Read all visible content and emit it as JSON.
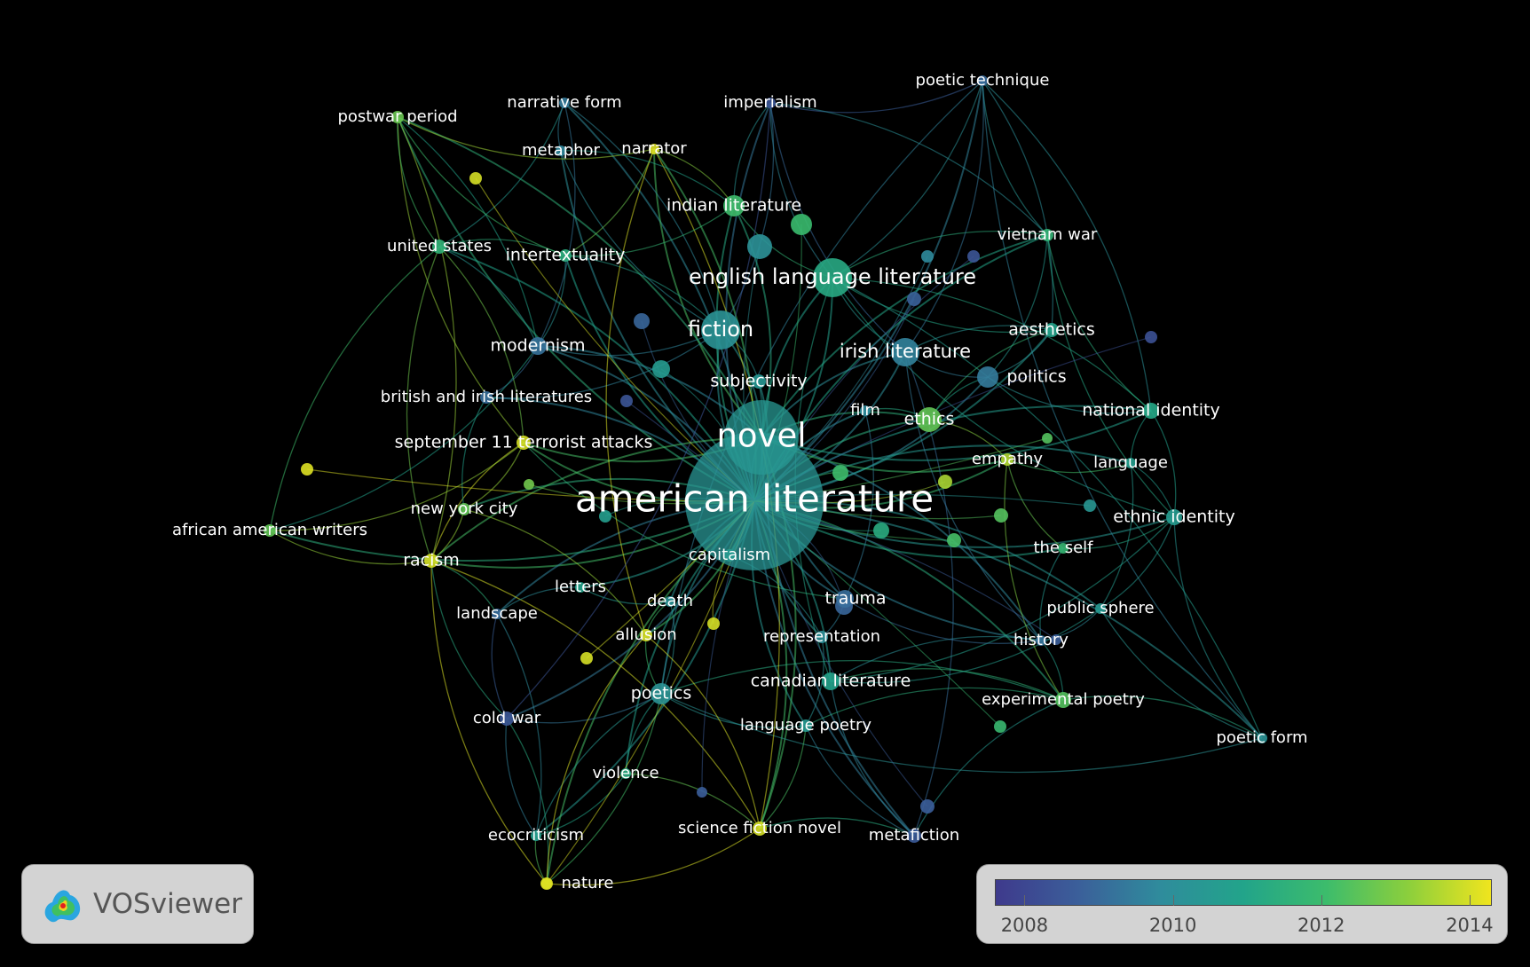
{
  "color_scale": {
    "min_year": 2007.6,
    "max_year": 2014.3,
    "stops": [
      "#3e3a8c",
      "#3b5f9a",
      "#2f8c9c",
      "#22a48a",
      "#3cbc6c",
      "#8ccf3c",
      "#f0e51e"
    ],
    "tick_labels": [
      "2008",
      "2010",
      "2012",
      "2014"
    ],
    "tick_years": [
      2008,
      2010,
      2012,
      2014
    ]
  },
  "logo": {
    "text": "VOSviewer",
    "icon": "vosviewer-logo-icon"
  },
  "nodes": [
    {
      "id": "american-literature",
      "label": "american literature",
      "weight": 10,
      "year": 2010.3
    },
    {
      "id": "novel",
      "label": "novel",
      "weight": 6,
      "year": 2010.4
    },
    {
      "id": "english-language-literature",
      "label": "english language literature",
      "weight": 3.2,
      "year": 2011.2
    },
    {
      "id": "fiction",
      "label": "fiction",
      "weight": 3.2,
      "year": 2010.2
    },
    {
      "id": "irish-literature",
      "label": "irish literature",
      "weight": 2.6,
      "year": 2009.6
    },
    {
      "id": "indian-literature",
      "label": "indian literature",
      "weight": 2.1,
      "year": 2012.1
    },
    {
      "id": "poetics",
      "label": "poetics",
      "weight": 2.1,
      "year": 2010.2
    },
    {
      "id": "canadian-literature",
      "label": "canadian literature",
      "weight": 1.8,
      "year": 2010.9
    },
    {
      "id": "modernism",
      "label": "modernism",
      "weight": 1.8,
      "year": 2009.2
    },
    {
      "id": "ethics",
      "label": "ethics",
      "weight": 1.6,
      "year": 2012.6
    },
    {
      "id": "subjectivity",
      "label": "subjectivity",
      "weight": 1.5,
      "year": 2010.4
    },
    {
      "id": "trauma",
      "label": "trauma",
      "weight": 1.5,
      "year": 2009.1
    },
    {
      "id": "national-identity",
      "label": "national identity",
      "weight": 1.5,
      "year": 2011.1
    },
    {
      "id": "ethnic-identity",
      "label": "ethnic identity",
      "weight": 1.5,
      "year": 2010.6
    },
    {
      "id": "september-11",
      "label": "september 11 terrorist attacks",
      "weight": 1.5,
      "year": 2014.0
    },
    {
      "id": "politics",
      "label": "politics",
      "weight": 1.4,
      "year": 2009.4
    },
    {
      "id": "intertextuality",
      "label": "intertextuality",
      "weight": 1.3,
      "year": 2011.4
    },
    {
      "id": "aesthetics",
      "label": "aesthetics",
      "weight": 1.3,
      "year": 2010.9
    },
    {
      "id": "racism",
      "label": "racism",
      "weight": 1.3,
      "year": 2014.0
    },
    {
      "id": "british-and-irish-literatures",
      "label": "british and irish literatures",
      "weight": 1.3,
      "year": 2009.1
    },
    {
      "id": "representation",
      "label": "representation",
      "weight": 1.3,
      "year": 2010.0
    },
    {
      "id": "capitalism",
      "label": "capitalism",
      "weight": 1.3,
      "year": 2010.5
    },
    {
      "id": "film",
      "label": "film",
      "weight": 1.2,
      "year": 2009.8
    },
    {
      "id": "empathy",
      "label": "empathy",
      "weight": 1.2,
      "year": 2013.6
    },
    {
      "id": "language",
      "label": "language",
      "weight": 1.2,
      "year": 2010.7
    },
    {
      "id": "the-self",
      "label": "the self",
      "weight": 1.2,
      "year": 2011.8
    },
    {
      "id": "public-sphere",
      "label": "public sphere",
      "weight": 1.2,
      "year": 2010.5
    },
    {
      "id": "history",
      "label": "history",
      "weight": 1.2,
      "year": 2009.2
    },
    {
      "id": "experimental-poetry",
      "label": "experimental poetry",
      "weight": 1.3,
      "year": 2012.4
    },
    {
      "id": "language-poetry",
      "label": "language poetry",
      "weight": 1.2,
      "year": 2010.5
    },
    {
      "id": "allusion",
      "label": "allusion",
      "weight": 1.2,
      "year": 2014.0
    },
    {
      "id": "death",
      "label": "death",
      "weight": 1.1,
      "year": 2010.2
    },
    {
      "id": "letters",
      "label": "letters",
      "weight": 1.1,
      "year": 2010.9
    },
    {
      "id": "landscape",
      "label": "landscape",
      "weight": 1.1,
      "year": 2009.0
    },
    {
      "id": "cold-war",
      "label": "cold war",
      "weight": 1.2,
      "year": 2008.5
    },
    {
      "id": "violence",
      "label": "violence",
      "weight": 1.1,
      "year": 2011.3
    },
    {
      "id": "ecocriticism",
      "label": "ecocriticism",
      "weight": 1.1,
      "year": 2010.7
    },
    {
      "id": "nature",
      "label": "nature",
      "weight": 1.2,
      "year": 2014.1
    },
    {
      "id": "science-fiction-novel",
      "label": "science fiction novel",
      "weight": 1.3,
      "year": 2014.0
    },
    {
      "id": "metafiction",
      "label": "metafiction",
      "weight": 1.2,
      "year": 2008.6
    },
    {
      "id": "poetic-form",
      "label": "poetic form",
      "weight": 1.1,
      "year": 2010.2
    },
    {
      "id": "poetic-technique",
      "label": "poetic technique",
      "weight": 1.1,
      "year": 2009.0
    },
    {
      "id": "imperialism",
      "label": "imperialism",
      "weight": 1.1,
      "year": 2008.4
    },
    {
      "id": "narrative-form",
      "label": "narrative form",
      "weight": 1.1,
      "year": 2009.4
    },
    {
      "id": "metaphor",
      "label": "metaphor",
      "weight": 1.1,
      "year": 2009.7
    },
    {
      "id": "narrator",
      "label": "narrator",
      "weight": 1.1,
      "year": 2014.1
    },
    {
      "id": "postwar-period",
      "label": "postwar period",
      "weight": 1.2,
      "year": 2012.7
    },
    {
      "id": "united-states",
      "label": "united states",
      "weight": 1.3,
      "year": 2011.6
    },
    {
      "id": "vietnam-war",
      "label": "vietnam war",
      "weight": 1.2,
      "year": 2011.7
    },
    {
      "id": "new-york-city",
      "label": "new york city",
      "weight": 1.2,
      "year": 2012.6
    },
    {
      "id": "african-american-writers",
      "label": "african american writers",
      "weight": 1.2,
      "year": 2012.6
    }
  ],
  "edges": [
    [
      "american-literature",
      "novel"
    ],
    [
      "american-literature",
      "english-language-literature"
    ],
    [
      "american-literature",
      "fiction"
    ],
    [
      "american-literature",
      "irish-literature"
    ],
    [
      "american-literature",
      "indian-literature"
    ],
    [
      "american-literature",
      "poetics"
    ],
    [
      "american-literature",
      "canadian-literature"
    ],
    [
      "american-literature",
      "modernism"
    ],
    [
      "american-literature",
      "ethics"
    ],
    [
      "american-literature",
      "trauma"
    ],
    [
      "american-literature",
      "national-identity"
    ],
    [
      "american-literature",
      "ethnic-identity"
    ],
    [
      "american-literature",
      "september-11"
    ],
    [
      "american-literature",
      "politics"
    ],
    [
      "american-literature",
      "racism"
    ],
    [
      "american-literature",
      "representation"
    ],
    [
      "american-literature",
      "capitalism"
    ],
    [
      "american-literature",
      "empathy"
    ],
    [
      "american-literature",
      "language"
    ],
    [
      "american-literature",
      "the-self"
    ],
    [
      "american-literature",
      "public-sphere"
    ],
    [
      "american-literature",
      "history"
    ],
    [
      "american-literature",
      "experimental-poetry"
    ],
    [
      "american-literature",
      "language-poetry"
    ],
    [
      "american-literature",
      "allusion"
    ],
    [
      "american-literature",
      "death"
    ],
    [
      "american-literature",
      "letters"
    ],
    [
      "american-literature",
      "landscape"
    ],
    [
      "american-literature",
      "cold-war"
    ],
    [
      "american-literature",
      "violence"
    ],
    [
      "american-literature",
      "ecocriticism"
    ],
    [
      "american-literature",
      "nature"
    ],
    [
      "american-literature",
      "science-fiction-novel"
    ],
    [
      "american-literature",
      "metafiction"
    ],
    [
      "american-literature",
      "poetic-form"
    ],
    [
      "american-literature",
      "poetic-technique"
    ],
    [
      "american-literature",
      "imperialism"
    ],
    [
      "american-literature",
      "narrative-form"
    ],
    [
      "american-literature",
      "metaphor"
    ],
    [
      "american-literature",
      "narrator"
    ],
    [
      "american-literature",
      "postwar-period"
    ],
    [
      "american-literature",
      "united-states"
    ],
    [
      "american-literature",
      "vietnam-war"
    ],
    [
      "american-literature",
      "new-york-city"
    ],
    [
      "american-literature",
      "african-american-writers"
    ],
    [
      "american-literature",
      "aesthetics"
    ],
    [
      "american-literature",
      "intertextuality"
    ],
    [
      "american-literature",
      "british-and-irish-literatures"
    ],
    [
      "american-literature",
      "film"
    ],
    [
      "american-literature",
      "subjectivity"
    ],
    [
      "novel",
      "english-language-literature"
    ],
    [
      "novel",
      "fiction"
    ],
    [
      "novel",
      "irish-literature"
    ],
    [
      "novel",
      "indian-literature"
    ],
    [
      "novel",
      "ethics"
    ],
    [
      "novel",
      "trauma"
    ],
    [
      "novel",
      "september-11"
    ],
    [
      "novel",
      "modernism"
    ],
    [
      "novel",
      "narrator"
    ],
    [
      "novel",
      "postwar-period"
    ],
    [
      "novel",
      "science-fiction-novel"
    ],
    [
      "novel",
      "metafiction"
    ],
    [
      "novel",
      "vietnam-war"
    ],
    [
      "novel",
      "national-identity"
    ],
    [
      "novel",
      "capitalism"
    ],
    [
      "novel",
      "racism"
    ],
    [
      "novel",
      "history"
    ],
    [
      "novel",
      "empathy"
    ],
    [
      "english-language-literature",
      "indian-literature"
    ],
    [
      "english-language-literature",
      "irish-literature"
    ],
    [
      "english-language-literature",
      "national-identity"
    ],
    [
      "english-language-literature",
      "poetic-technique"
    ],
    [
      "english-language-literature",
      "imperialism"
    ],
    [
      "english-language-literature",
      "aesthetics"
    ],
    [
      "english-language-literature",
      "vietnam-war"
    ],
    [
      "english-language-literature",
      "ethnic-identity"
    ],
    [
      "english-language-literature",
      "poetic-form"
    ],
    [
      "english-language-literature",
      "canadian-literature"
    ],
    [
      "fiction",
      "modernism"
    ],
    [
      "fiction",
      "narrative-form"
    ],
    [
      "fiction",
      "metaphor"
    ],
    [
      "fiction",
      "intertextuality"
    ],
    [
      "fiction",
      "british-and-irish-literatures"
    ],
    [
      "fiction",
      "imperialism"
    ],
    [
      "fiction",
      "subjectivity"
    ],
    [
      "irish-literature",
      "politics"
    ],
    [
      "irish-literature",
      "aesthetics"
    ],
    [
      "irish-literature",
      "poetic-technique"
    ],
    [
      "irish-literature",
      "imperialism"
    ],
    [
      "irish-literature",
      "history"
    ],
    [
      "irish-literature",
      "metafiction"
    ],
    [
      "poetics",
      "language-poetry"
    ],
    [
      "poetics",
      "experimental-poetry"
    ],
    [
      "poetics",
      "poetic-form"
    ],
    [
      "poetics",
      "cold-war"
    ],
    [
      "poetics",
      "ecocriticism"
    ],
    [
      "poetics",
      "nature"
    ],
    [
      "poetics",
      "violence"
    ],
    [
      "poetics",
      "allusion"
    ],
    [
      "poetics",
      "death"
    ],
    [
      "poetics",
      "poetic-technique"
    ],
    [
      "canadian-literature",
      "ethnic-identity"
    ],
    [
      "canadian-literature",
      "experimental-poetry"
    ],
    [
      "canadian-literature",
      "metafiction"
    ],
    [
      "canadian-literature",
      "history"
    ],
    [
      "canadian-literature",
      "public-sphere"
    ],
    [
      "september-11",
      "new-york-city"
    ],
    [
      "september-11",
      "racism"
    ],
    [
      "september-11",
      "african-american-writers"
    ],
    [
      "september-11",
      "united-states"
    ],
    [
      "september-11",
      "postwar-period"
    ],
    [
      "september-11",
      "trauma"
    ],
    [
      "racism",
      "african-american-writers"
    ],
    [
      "racism",
      "new-york-city"
    ],
    [
      "racism",
      "united-states"
    ],
    [
      "racism",
      "nature"
    ],
    [
      "racism",
      "science-fiction-novel"
    ],
    [
      "racism",
      "cold-war"
    ],
    [
      "racism",
      "landscape"
    ],
    [
      "racism",
      "postwar-period"
    ],
    [
      "united-states",
      "postwar-period"
    ],
    [
      "united-states",
      "african-american-writers"
    ],
    [
      "united-states",
      "modernism"
    ],
    [
      "united-states",
      "narrative-form"
    ],
    [
      "united-states",
      "intertextuality"
    ],
    [
      "postwar-period",
      "narrator"
    ],
    [
      "postwar-period",
      "modernism"
    ],
    [
      "postwar-period",
      "intertextuality"
    ],
    [
      "narrator",
      "intertextuality"
    ],
    [
      "narrator",
      "allusion"
    ],
    [
      "narrator",
      "science-fiction-novel"
    ],
    [
      "narrative-form",
      "metaphor"
    ],
    [
      "narrative-form",
      "modernism"
    ],
    [
      "imperialism",
      "poetic-technique"
    ],
    [
      "imperialism",
      "vietnam-war"
    ],
    [
      "poetic-technique",
      "vietnam-war"
    ],
    [
      "poetic-technique",
      "aesthetics"
    ],
    [
      "poetic-technique",
      "poetic-form"
    ],
    [
      "poetic-technique",
      "national-identity"
    ],
    [
      "vietnam-war",
      "national-identity"
    ],
    [
      "vietnam-war",
      "politics"
    ],
    [
      "vietnam-war",
      "ethnic-identity"
    ],
    [
      "aesthetics",
      "politics"
    ],
    [
      "aesthetics",
      "ethics"
    ],
    [
      "national-identity",
      "ethnic-identity"
    ],
    [
      "national-identity",
      "language"
    ],
    [
      "ethnic-identity",
      "the-self"
    ],
    [
      "ethnic-identity",
      "poetic-form"
    ],
    [
      "ethnic-identity",
      "public-sphere"
    ],
    [
      "ethnic-identity",
      "language"
    ],
    [
      "the-self",
      "empathy"
    ],
    [
      "the-self",
      "history"
    ],
    [
      "public-sphere",
      "history"
    ],
    [
      "public-sphere",
      "poetic-form"
    ],
    [
      "history",
      "experimental-poetry"
    ],
    [
      "experimental-poetry",
      "language-poetry"
    ],
    [
      "experimental-poetry",
      "poetic-form"
    ],
    [
      "experimental-poetry",
      "metafiction"
    ],
    [
      "experimental-poetry",
      "empathy"
    ],
    [
      "language-poetry",
      "metafiction"
    ],
    [
      "language-poetry",
      "science-fiction-novel"
    ],
    [
      "language-poetry",
      "representation"
    ],
    [
      "science-fiction-novel",
      "nature"
    ],
    [
      "science-fiction-novel",
      "violence"
    ],
    [
      "science-fiction-novel",
      "metafiction"
    ],
    [
      "science-fiction-novel",
      "allusion"
    ],
    [
      "nature",
      "ecocriticism"
    ],
    [
      "nature",
      "cold-war"
    ],
    [
      "nature",
      "allusion"
    ],
    [
      "ecocriticism",
      "landscape"
    ],
    [
      "ecocriticism",
      "cold-war"
    ],
    [
      "ecocriticism",
      "violence"
    ],
    [
      "cold-war",
      "landscape"
    ],
    [
      "cold-war",
      "imperialism"
    ],
    [
      "landscape",
      "letters"
    ],
    [
      "letters",
      "death"
    ],
    [
      "allusion",
      "death"
    ],
    [
      "allusion",
      "new-york-city"
    ],
    [
      "modernism",
      "british-and-irish-literatures"
    ],
    [
      "modernism",
      "intertextuality"
    ],
    [
      "modernism",
      "african-american-writers"
    ],
    [
      "british-and-irish-literatures",
      "new-york-city"
    ],
    [
      "trauma",
      "representation"
    ],
    [
      "trauma",
      "history"
    ],
    [
      "ethics",
      "empathy"
    ],
    [
      "ethics",
      "film"
    ],
    [
      "ethics",
      "politics"
    ],
    [
      "politics",
      "national-identity"
    ],
    [
      "subjectivity",
      "capitalism"
    ],
    [
      "representation",
      "capitalism"
    ],
    [
      "film",
      "trauma"
    ],
    [
      "indian-literature",
      "narrator"
    ],
    [
      "indian-literature",
      "intertextuality"
    ],
    [
      "indian-literature",
      "metaphor"
    ],
    [
      "indian-literature",
      "imperialism"
    ],
    [
      "empathy",
      "language"
    ],
    [
      "language",
      "public-sphere"
    ]
  ]
}
